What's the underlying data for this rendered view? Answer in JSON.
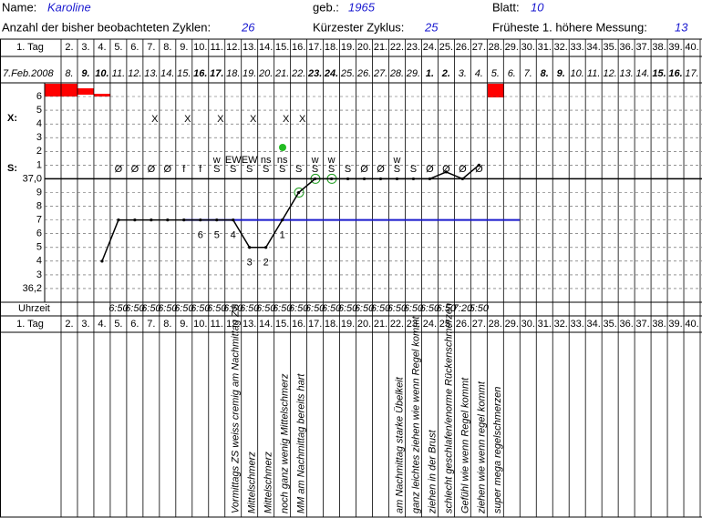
{
  "header": {
    "name_label": "Name:",
    "name": "Karoline",
    "birth_label": "geb.:",
    "birth": "1965",
    "sheet_label": "Blatt:",
    "sheet": "10",
    "cycles_label": "Anzahl der bisher beobachteten Zyklen:",
    "cycles": "26",
    "shortest_label": "Kürzester Zyklus:",
    "shortest": "25",
    "earliest_label": "Früheste 1. höhere Messung:",
    "earliest": "13"
  },
  "grid": {
    "days": [
      "1. Tag",
      "2.",
      "3.",
      "4.",
      "5.",
      "6.",
      "7.",
      "8.",
      "9.",
      "10.",
      "11.",
      "12.",
      "13.",
      "14.",
      "15.",
      "16.",
      "17.",
      "18.",
      "19.",
      "20.",
      "21.",
      "22.",
      "23.",
      "24.",
      "25.",
      "26.",
      "27.",
      "28.",
      "29.",
      "30.",
      "31.",
      "32.",
      "33.",
      "34.",
      "35.",
      "36.",
      "37.",
      "38.",
      "39.",
      "40."
    ],
    "dates": [
      "7.Feb.2008",
      "8.",
      "9.",
      "10.",
      "11.",
      "12.",
      "13.",
      "14.",
      "15.",
      "16.",
      "17.",
      "18.",
      "19.",
      "20.",
      "21.",
      "22.",
      "23.",
      "24.",
      "25.",
      "26.",
      "27.",
      "28.",
      "29.",
      "1.",
      "2.",
      "3.",
      "4.",
      "5.",
      "6.",
      "7.",
      "8.",
      "9.",
      "10.",
      "11.",
      "12.",
      "13.",
      "14.",
      "15.",
      "16.",
      "17."
    ],
    "weekend": [
      false,
      false,
      true,
      true,
      false,
      false,
      false,
      false,
      false,
      true,
      true,
      false,
      false,
      false,
      false,
      false,
      true,
      true,
      false,
      false,
      false,
      false,
      false,
      true,
      true,
      false,
      false,
      false,
      false,
      false,
      true,
      true,
      false,
      false,
      false,
      false,
      false,
      true,
      true,
      false
    ],
    "x_label": "X:",
    "s_label": "S:",
    "symptom_levels": [
      "6",
      "5",
      "4",
      "3",
      "2",
      "1"
    ],
    "temp_ticks": [
      {
        "value": 37.0,
        "label": "37,0"
      },
      {
        "value": 36.9,
        "label": "9"
      },
      {
        "value": 36.8,
        "label": "8"
      },
      {
        "value": 36.7,
        "label": "7"
      },
      {
        "value": 36.6,
        "label": "6"
      },
      {
        "value": 36.5,
        "label": "5"
      },
      {
        "value": 36.4,
        "label": "4"
      },
      {
        "value": 36.3,
        "label": "3"
      },
      {
        "value": 36.2,
        "label": "36,2"
      }
    ],
    "x_row": [
      null,
      null,
      null,
      null,
      null,
      null,
      "X",
      null,
      "X",
      null,
      "X",
      null,
      "X",
      null,
      "X",
      "X",
      null,
      null,
      null,
      null,
      null,
      null,
      null,
      null,
      null,
      null,
      null,
      null,
      null,
      null,
      null,
      null,
      null,
      null,
      null,
      null,
      null,
      null,
      null,
      null
    ],
    "s_row": [
      null,
      null,
      null,
      null,
      "Ø",
      "Ø",
      "Ø",
      "Ø",
      "f",
      "f",
      "S",
      "S",
      "S",
      "S",
      "S",
      "S",
      "S",
      "S",
      "S",
      "Ø",
      "Ø",
      "S",
      "S",
      "Ø",
      "Ø",
      "Ø",
      "Ø",
      null,
      null,
      null,
      null,
      null,
      null,
      null,
      null,
      null,
      null,
      null,
      null,
      null
    ],
    "s_notes": [
      null,
      null,
      null,
      null,
      null,
      null,
      null,
      null,
      null,
      null,
      "w",
      "EW",
      "EW",
      "ns",
      "ns",
      null,
      "w",
      "w",
      null,
      null,
      null,
      "w",
      null,
      null,
      null,
      null,
      null,
      null,
      null,
      null,
      null,
      null,
      null,
      null,
      null,
      null,
      null,
      null,
      null,
      null
    ],
    "temperatures": [
      null,
      null,
      null,
      36.4,
      36.7,
      36.7,
      36.7,
      36.7,
      36.7,
      36.7,
      36.7,
      36.7,
      36.5,
      36.5,
      36.7,
      36.9,
      37.0,
      37.0,
      37.0,
      37.0,
      37.0,
      37.0,
      37.0,
      37.0,
      37.05,
      37.0,
      37.1,
      null,
      null,
      null,
      null,
      null,
      null,
      null,
      null,
      null,
      null,
      null,
      null,
      null
    ],
    "coverline": 36.7,
    "counts": [
      null,
      null,
      null,
      null,
      null,
      null,
      null,
      null,
      null,
      6,
      5,
      4,
      3,
      2,
      1,
      null,
      null,
      null,
      null,
      null,
      null,
      null,
      null,
      null,
      null,
      null,
      null,
      null,
      null,
      null,
      null,
      null,
      null,
      null,
      null,
      null,
      null,
      null,
      null,
      null
    ],
    "time_label": "Uhrzeit",
    "times": [
      null,
      null,
      null,
      null,
      "6:50",
      "6:50",
      "6:50",
      "6:50",
      "6:50",
      "6:50",
      "6:50",
      "6:50",
      "6:50",
      "6:50",
      "6:50",
      "6:50",
      "6:50",
      "6:50",
      "6:50",
      "6:50",
      "6:50",
      "6:50",
      "6:50",
      "6:50",
      "6:50",
      "7:20",
      "5:50",
      null,
      null,
      null,
      null,
      null,
      null,
      null,
      null,
      null,
      null,
      null,
      null,
      null
    ],
    "notes": [
      null,
      null,
      null,
      null,
      null,
      null,
      null,
      null,
      null,
      null,
      null,
      "Vormittags ZS weiss cremig am Nachmittag ZS",
      "Mittelschmerz",
      "Mittelschmerz",
      "noch ganz wenig Mittelschmerz",
      "MM am Nachmittag bereits hart",
      null,
      null,
      null,
      null,
      null,
      "am Nachmittag starke Übelkeit",
      "ganz leichtes ziehen wie wenn Regel kommt",
      "ziehen in der Brust",
      "schlecht geschlafen/enorme Rückenschmerzen",
      "Gefühl wie wenn Regel kommt",
      "ziehen wie wenn regel kommt",
      "super mega regelschmerzen",
      null,
      null,
      null,
      null,
      null,
      null,
      null,
      null,
      null,
      null,
      null,
      null
    ]
  }
}
